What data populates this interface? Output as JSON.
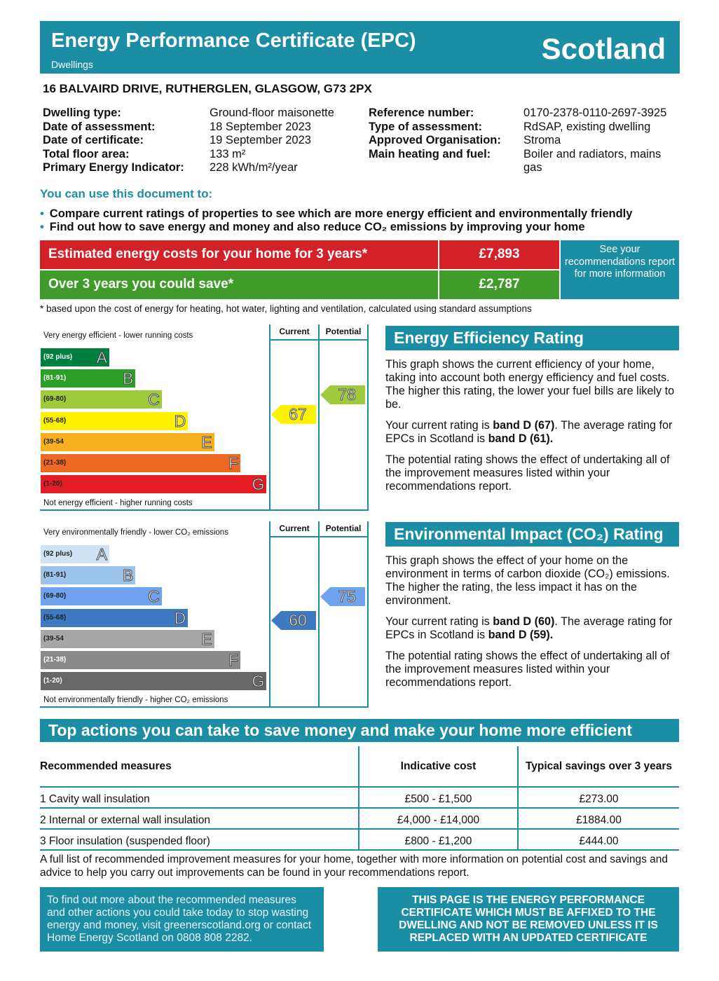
{
  "header": {
    "title": "Energy Performance Certificate (EPC)",
    "subtitle": "Dwellings",
    "region": "Scotland"
  },
  "address": "16 BALVAIRD DRIVE, RUTHERGLEN, GLASGOW, G73 2PX",
  "info_left": [
    {
      "label": "Dwelling type:",
      "value": "Ground-floor maisonette"
    },
    {
      "label": "Date of assessment:",
      "value": "18 September 2023"
    },
    {
      "label": "Date of certificate:",
      "value": "19 September 2023"
    },
    {
      "label": "Total floor area:",
      "value": "133 m²"
    },
    {
      "label": "Primary Energy Indicator:",
      "value": "228 kWh/m²/year"
    }
  ],
  "info_right": [
    {
      "label": "Reference number:",
      "value": "0170-2378-0110-2697-3925"
    },
    {
      "label": "Type of assessment:",
      "value": "RdSAP, existing dwelling"
    },
    {
      "label": "Approved Organisation:",
      "value": "Stroma"
    },
    {
      "label": "Main heating and fuel:",
      "value": "Boiler and radiators, mains gas"
    }
  ],
  "use": {
    "heading": "You can use this document to:",
    "bullets": [
      "Compare current ratings of properties to see which are more energy efficient and environmentally friendly",
      "Find out how to save energy and money and also reduce CO₂ emissions by improving your home"
    ]
  },
  "costs": {
    "estimated_label": "Estimated energy costs for your home for 3 years*",
    "estimated_value": "£7,893",
    "save_label": "Over 3 years you could save*",
    "save_value": "£2,787",
    "see_box": "See your recommendations report for more information",
    "footnote": "* based upon the cost of energy for heating, hot water, lighting and ventilation, calculated using standard assumptions"
  },
  "energy_chart": {
    "top": "Very energy efficient - lower running costs",
    "bottom": "Not energy efficient - higher running costs",
    "col_current": "Current",
    "col_potential": "Potential",
    "bands": [
      {
        "range": "(92 plus)",
        "letter": "A",
        "color": "#007f3d"
      },
      {
        "range": "(81-91)",
        "letter": "B",
        "color": "#2c9f29"
      },
      {
        "range": "(69-80)",
        "letter": "C",
        "color": "#9dcb3c"
      },
      {
        "range": "(55-68)",
        "letter": "D",
        "color": "#fff200"
      },
      {
        "range": "(39-54",
        "letter": "E",
        "color": "#f7af1d"
      },
      {
        "range": "(21-38)",
        "letter": "F",
        "color": "#ed6823"
      },
      {
        "range": "(1-20)",
        "letter": "G",
        "color": "#e31d23"
      }
    ],
    "current": "67",
    "potential": "78"
  },
  "env_chart": {
    "top": "Very environmentally friendly - lower CO₂ emissions",
    "bottom": "Not environmentally friendly - higher CO₂ emissions",
    "col_current": "Current",
    "col_potential": "Potential",
    "bands": [
      {
        "range": "(92 plus)",
        "letter": "A",
        "color": "#cfe2f3"
      },
      {
        "range": "(81-91)",
        "letter": "B",
        "color": "#9cc3ea"
      },
      {
        "range": "(69-80)",
        "letter": "C",
        "color": "#6fa3f0"
      },
      {
        "range": "(55-68)",
        "letter": "D",
        "color": "#3e7ac2"
      },
      {
        "range": "(39-54",
        "letter": "E",
        "color": "#a7a7a7"
      },
      {
        "range": "(21-38)",
        "letter": "F",
        "color": "#8a8a8a"
      },
      {
        "range": "(1-20)",
        "letter": "G",
        "color": "#676767"
      }
    ],
    "current": "60",
    "potential": "75"
  },
  "eer": {
    "heading": "Energy Efficiency Rating",
    "p1": "This graph shows the current efficiency of your home, taking into account both energy efficiency and fuel costs. The higher this rating, the lower your fuel bills are likely to be.",
    "p2a": "Your current rating is ",
    "p2b": "band D (67)",
    "p2c": ". The average rating for EPCs in Scotland is ",
    "p2d": "band D (61).",
    "p3": "The potential rating shows the effect of undertaking all of the improvement measures listed within your recommendations report."
  },
  "eir": {
    "heading": "Environmental Impact (CO₂) Rating",
    "p1": "This graph shows the effect of your home on the environment in terms of carbon dioxide (CO₂) emissions. The higher the rating, the less impact it has on the environment.",
    "p2a": "Your current rating is ",
    "p2b": "band D (60)",
    "p2c": ". The average rating for EPCs in Scotland is ",
    "p2d": "band D (59).",
    "p3": "The potential rating shows the effect of undertaking all of the improvement measures listed within your recommendations report."
  },
  "actions": {
    "heading": "Top actions you can take to save money and make your home more efficient",
    "columns": [
      "Recommended measures",
      "Indicative cost",
      "Typical savings over 3 years"
    ],
    "rows": [
      [
        "1 Cavity wall insulation",
        "£500 - £1,500",
        "£273.00"
      ],
      [
        "2 Internal or external wall insulation",
        "£4,000 - £14,000",
        "£1884.00"
      ],
      [
        "3 Floor insulation (suspended floor)",
        "£800 - £1,200",
        "£444.00"
      ]
    ],
    "note": "A full list of recommended improvement measures for your home, together with more information on potential cost and savings and advice to help you carry out improvements can be found in your recommendations report."
  },
  "bottom": {
    "left": "To find out more about the recommended measures and other actions you could take today to stop wasting energy and money, visit greenerscotland.org or contact Home Energy Scotland on 0808 808 2282.",
    "right": "THIS PAGE IS THE ENERGY PERFORMANCE CERTIFICATE WHICH MUST BE AFFIXED TO THE DWELLING AND NOT BE REMOVED UNLESS IT IS REPLACED WITH AN UPDATED CERTIFICATE"
  }
}
